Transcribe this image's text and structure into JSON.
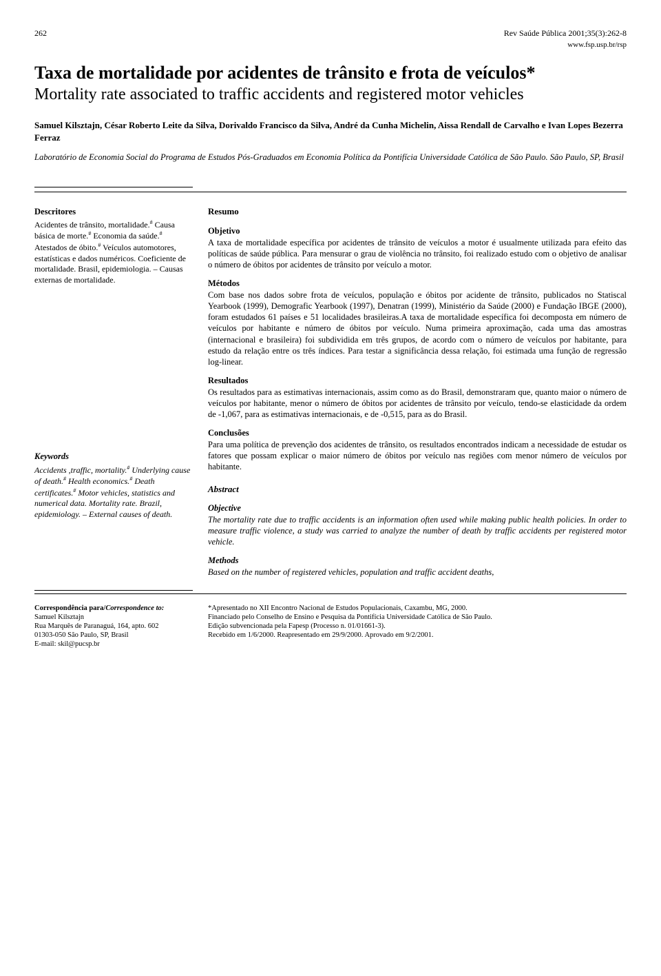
{
  "header": {
    "page_num": "262",
    "citation": "Rev Saúde Pública 2001;35(3):262-8",
    "url": "www.fsp.usp.br/rsp"
  },
  "title_pt": "Taxa de mortalidade por acidentes de trânsito e frota de veículos*",
  "title_en": "Mortality rate associated to traffic accidents and registered motor vehicles",
  "authors": "Samuel Kilsztajn, César Roberto Leite da Silva, Dorivaldo Francisco da Silva, André da Cunha Michelin, Aissa Rendall de Carvalho e Ivan Lopes Bezerra Ferraz",
  "affiliation": "Laboratório de Economia Social do Programa de Estudos Pós-Graduados em Economia Política da Pontifícia Universidade Católica de São Paulo. São Paulo, SP, Brasil",
  "descritores": {
    "head": "Descritores",
    "text": "Acidentes de trânsito, mortalidade.# Causa básica de morte.# Economia da saúde.# Atestados de óbito.# Veículos automotores, estatísticas e dados numéricos. Coeficiente de mortalidade. Brasil, epidemiologia. – Causas externas de mortalidade."
  },
  "keywords": {
    "head": "Keywords",
    "text": "Accidents ,traffic, mortality.# Underlying cause of death.# Health economics.# Death certificates.# Motor vehicles, statistics and numerical data. Mortality rate. Brazil, epidemiology. – External causes of death."
  },
  "resumo": {
    "head": "Resumo",
    "objetivo_h": "Objetivo",
    "objetivo": "A taxa de mortalidade específica por acidentes de trânsito de veículos a motor é usualmente utilizada para efeito das políticas de saúde pública. Para mensurar o grau de violência no trânsito, foi realizado estudo com o objetivo de analisar o número de óbitos por acidentes de trânsito por veículo a motor.",
    "metodos_h": "Métodos",
    "metodos": "Com base nos dados sobre frota de veículos, população e óbitos por acidente de trânsito, publicados no Statiscal Yearbook (1999), Demografic Yearbook (1997), Denatran (1999), Ministério da Saúde (2000) e Fundação IBGE (2000), foram estudados 61 países e 51 localidades brasileiras.A taxa de mortalidade específica foi decomposta em número de veículos por habitante e número de óbitos por veículo. Numa primeira aproximação, cada uma das amostras (internacional e brasileira) foi subdividida em três grupos, de acordo com o número de veículos por habitante, para estudo da relação entre os três índices. Para testar a significância dessa relação, foi estimada uma função de regressão log-linear.",
    "resultados_h": "Resultados",
    "resultados": "Os resultados para as estimativas internacionais, assim como as do Brasil, demonstraram que, quanto maior o número de veículos por habitante, menor o número de óbitos por acidentes de trânsito por veículo, tendo-se elasticidade da ordem de -1,067, para as estimativas internacionais, e de -0,515, para as do Brasil.",
    "conclusoes_h": "Conclusões",
    "conclusoes": "Para uma política de prevenção dos acidentes de trânsito, os resultados encontrados indicam a necessidade de estudar os fatores que possam explicar o maior número de óbitos por veículo nas regiões com menor número de veículos por habitante."
  },
  "abstract": {
    "head": "Abstract",
    "objective_h": "Objective",
    "objective": "The mortality rate due to traffic accidents is an information often used while making public health policies. In order to measure traffic violence, a study was carried to analyze the number of death by traffic accidents per registered motor vehicle.",
    "methods_h": "Methods",
    "methods": "Based on the number of registered vehicles, population and traffic accident deaths,"
  },
  "correspondence": {
    "head_pt": "Correspondência para/",
    "head_en": "Correspondence to:",
    "name": "Samuel Kilsztajn",
    "addr1": "Rua Marquês de Paranaguá, 164, apto. 602",
    "addr2": "01303-050 São Paulo, SP, Brasil",
    "email": "E-mail: skil@pucsp.br"
  },
  "footnotes": {
    "l1": "*Apresentado no XII Encontro Nacional de Estudos Populacionais, Caxambu, MG, 2000.",
    "l2": "Financiado pelo Conselho de Ensino e Pesquisa da Pontifícia Universidade Católica de São Paulo.",
    "l3": "Edição subvencionada pela Fapesp (Processo n. 01/01661-3).",
    "l4": "Recebido em 1/6/2000. Reapresentado em 29/9/2000. Aprovado em 9/2/2001."
  }
}
